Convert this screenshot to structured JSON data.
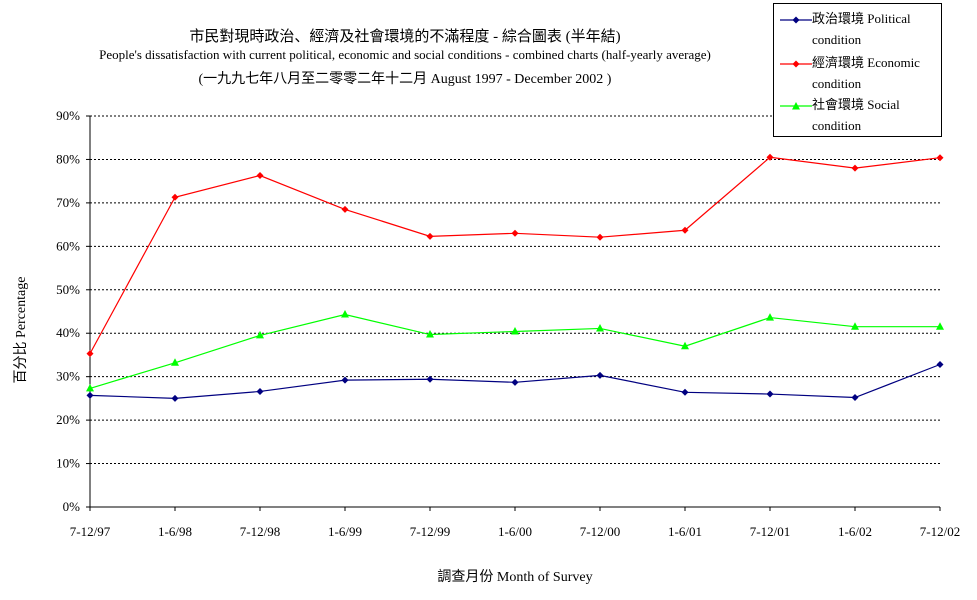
{
  "chart_data": {
    "type": "line",
    "title": "市民對現時政治、經濟及社會環境的不滿程度 - 綜合圖表 (半年結)",
    "subtitle": "People's dissatisfaction with current political, economic and social conditions - combined charts  (half-yearly average)",
    "subtitle2": "(一九九七年八月至二零零二年十二月 August 1997 - December 2002 )",
    "xlabel": "調查月份 Month of Survey",
    "ylabel": "百分比 Percentage",
    "categories": [
      "7-12/97",
      "1-6/98",
      "7-12/98",
      "1-6/99",
      "7-12/99",
      "1-6/00",
      "7-12/00",
      "1-6/01",
      "7-12/01",
      "1-6/02",
      "7-12/02"
    ],
    "ylim": [
      0,
      90
    ],
    "yticks": [
      "0%",
      "10%",
      "20%",
      "30%",
      "40%",
      "50%",
      "60%",
      "70%",
      "80%",
      "90%"
    ],
    "grid": true,
    "legend_position": "top-right",
    "series": [
      {
        "name": "政治環境 Political condition",
        "color": "#000080",
        "marker": "diamond",
        "values": [
          25.7,
          25.0,
          26.6,
          29.2,
          29.4,
          28.7,
          30.3,
          26.4,
          26.0,
          25.2,
          32.8
        ]
      },
      {
        "name": "經濟環境 Economic condition",
        "color": "#ff0000",
        "marker": "diamond",
        "values": [
          35.3,
          71.3,
          76.3,
          68.5,
          62.3,
          63.0,
          62.1,
          63.7,
          80.5,
          78.0,
          80.4
        ]
      },
      {
        "name": "社會環境 Social condition",
        "color": "#00ff00",
        "marker": "triangle",
        "values": [
          27.3,
          33.2,
          39.5,
          44.3,
          39.7,
          40.4,
          41.1,
          37.0,
          43.6,
          41.5,
          41.5
        ]
      }
    ]
  }
}
